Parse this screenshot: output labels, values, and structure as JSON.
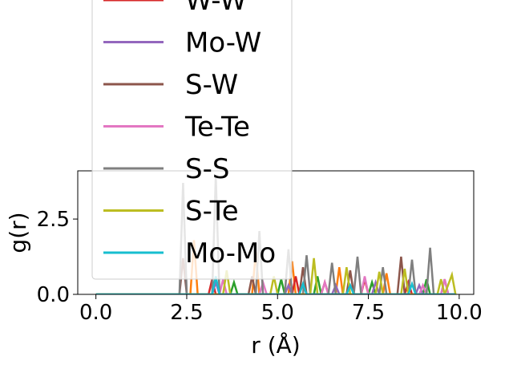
{
  "chart_data": {
    "type": "line",
    "xlabel": "r (Å)",
    "ylabel": "g(r)",
    "xlim": [
      -0.5,
      10.4
    ],
    "ylim": [
      0.0,
      4.1
    ],
    "xticks": [
      0.0,
      2.5,
      5.0,
      7.5,
      10.0
    ],
    "xtick_labels": [
      "0.0",
      "2.5",
      "5.0",
      "7.5",
      "10.0"
    ],
    "yticks": [
      0.0,
      2.5
    ],
    "ytick_labels": [
      "0.0",
      "2.5"
    ],
    "grid": false,
    "legend_position": "upper-left",
    "series": [
      {
        "name": "W-W",
        "color": "#d62728",
        "x": [
          0,
          2.0,
          3.1,
          3.2,
          3.3,
          5.4,
          5.5,
          5.6,
          6.2,
          6.3,
          6.4,
          7.3,
          7.4,
          7.5,
          8.5,
          8.6,
          8.7,
          9.9
        ],
        "y": [
          0,
          0,
          0,
          0.5,
          0,
          0,
          0.6,
          0,
          0,
          0.4,
          0,
          0,
          0.5,
          0,
          0,
          0.4,
          0,
          0
        ]
      },
      {
        "name": "Mo-W",
        "color": "#9467bd",
        "x": [
          0,
          2.2,
          3.2,
          3.3,
          3.4,
          5.2,
          5.3,
          5.4,
          6.5,
          6.6,
          6.7,
          7.6,
          7.7,
          7.8,
          8.8,
          8.9,
          9.0,
          9.9
        ],
        "y": [
          0,
          0,
          0,
          0.4,
          0,
          0,
          0.3,
          0,
          0,
          0.3,
          0,
          0,
          0.4,
          0,
          0,
          0.3,
          0,
          0
        ]
      },
      {
        "name": "S-W",
        "color": "#8c564b",
        "x": [
          0,
          2.3,
          2.4,
          2.5,
          4.2,
          4.3,
          4.4,
          5.6,
          5.7,
          5.8,
          6.9,
          7.0,
          7.1,
          8.3,
          8.4,
          8.5,
          9.5,
          9.6,
          9.7,
          9.9
        ],
        "y": [
          0,
          0,
          1.2,
          0,
          0,
          0.6,
          0,
          0,
          0.9,
          0,
          0,
          0.8,
          0,
          0,
          1.25,
          0,
          0,
          0.5,
          0,
          0
        ]
      },
      {
        "name": "Te-Te",
        "color": "#e377c2",
        "x": [
          0,
          3.4,
          3.5,
          3.6,
          4.5,
          4.6,
          4.7,
          6.2,
          6.3,
          6.4,
          7.3,
          7.4,
          7.5,
          8.9,
          9.0,
          9.1,
          9.5,
          9.6,
          9.7,
          9.9
        ],
        "y": [
          0,
          0,
          0.5,
          0,
          0,
          0.4,
          0,
          0,
          0.4,
          0,
          0,
          0.6,
          0,
          0,
          0.3,
          0,
          0,
          0.5,
          0,
          0
        ]
      },
      {
        "name": "S-S",
        "color": "#7f7f7f",
        "x": [
          0,
          2.3,
          2.4,
          2.5,
          3.2,
          3.3,
          3.4,
          4.4,
          4.5,
          4.6,
          5.2,
          5.3,
          5.4,
          5.7,
          5.8,
          5.9,
          6.4,
          6.5,
          6.6,
          7.1,
          7.2,
          7.3,
          7.8,
          7.9,
          8.0,
          8.6,
          8.7,
          8.8,
          9.1,
          9.2,
          9.3,
          9.9
        ],
        "y": [
          0,
          0,
          3.7,
          0,
          0,
          3.95,
          0,
          0,
          2.1,
          0,
          0,
          1.5,
          0,
          0,
          1.3,
          0,
          0,
          1.05,
          0,
          0,
          1.25,
          0,
          0,
          0.9,
          0,
          0,
          1.15,
          0,
          0,
          1.55,
          0,
          0
        ]
      },
      {
        "name": "S-Te",
        "color": "#bcbd22",
        "x": [
          0,
          3.5,
          3.6,
          3.7,
          4.8,
          4.9,
          5.0,
          5.9,
          6.0,
          6.1,
          6.8,
          6.9,
          7.0,
          7.7,
          7.8,
          7.9,
          8.4,
          8.5,
          8.6,
          9.4,
          9.5,
          9.6,
          9.8,
          9.9
        ],
        "y": [
          0,
          0,
          0.8,
          0,
          0,
          0.6,
          0,
          0,
          1.2,
          0,
          0,
          0.9,
          0,
          0,
          0.75,
          0,
          0,
          0.85,
          0,
          0,
          0.5,
          0,
          0.65,
          0
        ]
      },
      {
        "name": "Mo-Mo",
        "color": "#17becf",
        "x": [
          0,
          3.2,
          3.3,
          3.4,
          5.6,
          5.7,
          5.8,
          6.9,
          7.0,
          7.1,
          8.6,
          8.7,
          8.8,
          9.9
        ],
        "y": [
          0,
          0,
          0.6,
          0,
          0,
          0.35,
          0,
          0,
          0.3,
          0,
          0,
          0.35,
          0,
          0
        ]
      }
    ],
    "extra_series": [
      {
        "color": "#ff7f0e",
        "x": [
          0,
          2.6,
          2.7,
          2.8,
          4.3,
          4.4,
          4.5,
          5.3,
          5.4,
          5.5,
          6.6,
          6.7,
          6.8,
          7.9,
          8.0,
          8.1,
          9.9
        ],
        "y": [
          0,
          0,
          1.8,
          0,
          0,
          1.4,
          0,
          0,
          1.1,
          0,
          0,
          0.9,
          0,
          0,
          0.7,
          0,
          0
        ]
      },
      {
        "color": "#2ca02c",
        "x": [
          0,
          3.7,
          3.8,
          3.9,
          5.0,
          5.1,
          5.2,
          6.0,
          6.1,
          6.2,
          7.5,
          7.6,
          7.7,
          9.0,
          9.1,
          9.2,
          9.9
        ],
        "y": [
          0,
          0,
          0.4,
          0,
          0,
          0.5,
          0,
          0,
          0.6,
          0,
          0,
          0.4,
          0,
          0,
          0.5,
          0,
          0
        ]
      }
    ]
  }
}
